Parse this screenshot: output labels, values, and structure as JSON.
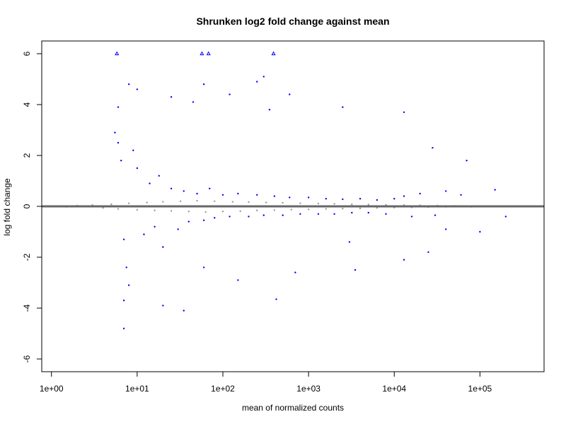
{
  "chart_data": {
    "type": "scatter",
    "title": "Shrunken log2 fold change against mean",
    "xlabel": "mean of normalized counts",
    "ylabel": "log fold change",
    "x_scale": "log10",
    "xlim": [
      0.77,
      560000
    ],
    "ylim": [
      -6.5,
      6.5
    ],
    "x_ticks": [
      1,
      10,
      100,
      1000,
      10000,
      100000
    ],
    "x_tick_labels": [
      "1e+00",
      "1e+01",
      "1e+02",
      "1e+03",
      "1e+04",
      "1e+05"
    ],
    "y_ticks": [
      -6,
      -4,
      -2,
      0,
      2,
      4,
      6
    ],
    "y_tick_labels": [
      "-6",
      "-4",
      "-2",
      "0",
      "2",
      "4",
      "6"
    ],
    "grid": false,
    "reference_line": {
      "y": 0,
      "color": "#666666"
    },
    "series": [
      {
        "color": "#999999",
        "marker": "dot",
        "points": [
          [
            1.2,
            0.01
          ],
          [
            1.5,
            -0.02
          ],
          [
            2,
            0.03
          ],
          [
            2.5,
            -0.01
          ],
          [
            3,
            0.05
          ],
          [
            4,
            -0.06
          ],
          [
            5,
            0.08
          ],
          [
            6,
            -0.1
          ],
          [
            8,
            0.12
          ],
          [
            10,
            -0.14
          ],
          [
            13,
            0.15
          ],
          [
            16,
            -0.16
          ],
          [
            20,
            0.18
          ],
          [
            25,
            -0.18
          ],
          [
            32,
            0.2
          ],
          [
            40,
            -0.2
          ],
          [
            50,
            0.22
          ],
          [
            63,
            -0.22
          ],
          [
            80,
            0.2
          ],
          [
            100,
            -0.2
          ],
          [
            130,
            0.18
          ],
          [
            160,
            -0.19
          ],
          [
            200,
            0.17
          ],
          [
            250,
            -0.16
          ],
          [
            320,
            0.15
          ],
          [
            400,
            -0.15
          ],
          [
            500,
            0.14
          ],
          [
            630,
            -0.13
          ],
          [
            800,
            0.12
          ],
          [
            1000,
            -0.12
          ],
          [
            1300,
            0.11
          ],
          [
            1600,
            -0.1
          ],
          [
            2000,
            0.1
          ],
          [
            2500,
            -0.09
          ],
          [
            3200,
            0.08
          ],
          [
            4000,
            -0.08
          ],
          [
            5000,
            0.07
          ],
          [
            6300,
            -0.06
          ],
          [
            8000,
            0.06
          ],
          [
            10000,
            -0.05
          ],
          [
            13000,
            0.05
          ],
          [
            16000,
            -0.04
          ],
          [
            20000,
            0.04
          ],
          [
            25000,
            -0.03
          ],
          [
            32000,
            0.03
          ],
          [
            40000,
            -0.02
          ],
          [
            50000,
            0.02
          ],
          [
            80000,
            -0.02
          ],
          [
            130000,
            0.01
          ],
          [
            200000,
            -0.01
          ]
        ]
      },
      {
        "color": "#0000ff",
        "marker": "dot",
        "points": [
          [
            5.5,
            2.9
          ],
          [
            6,
            2.5
          ],
          [
            6.5,
            1.8
          ],
          [
            7,
            -1.3
          ],
          [
            7.5,
            -2.4
          ],
          [
            8,
            -3.1
          ],
          [
            9,
            2.2
          ],
          [
            10,
            1.5
          ],
          [
            12,
            -1.1
          ],
          [
            14,
            0.9
          ],
          [
            16,
            -0.8
          ],
          [
            18,
            1.2
          ],
          [
            20,
            -1.6
          ],
          [
            25,
            0.7
          ],
          [
            30,
            -0.9
          ],
          [
            35,
            0.6
          ],
          [
            40,
            -0.6
          ],
          [
            50,
            0.5
          ],
          [
            60,
            -0.55
          ],
          [
            70,
            0.7
          ],
          [
            80,
            -0.45
          ],
          [
            100,
            0.45
          ],
          [
            120,
            -0.4
          ],
          [
            150,
            0.5
          ],
          [
            200,
            -0.4
          ],
          [
            250,
            0.45
          ],
          [
            300,
            -0.35
          ],
          [
            400,
            0.4
          ],
          [
            500,
            -0.35
          ],
          [
            600,
            0.35
          ],
          [
            800,
            -0.3
          ],
          [
            1000,
            0.35
          ],
          [
            1300,
            -0.3
          ],
          [
            1600,
            0.3
          ],
          [
            2000,
            -0.3
          ],
          [
            2500,
            0.28
          ],
          [
            3200,
            -0.25
          ],
          [
            4000,
            0.3
          ],
          [
            5000,
            -0.25
          ],
          [
            6300,
            0.25
          ],
          [
            8000,
            -0.3
          ],
          [
            10000,
            0.3
          ],
          [
            13000,
            0.4
          ],
          [
            16000,
            -0.4
          ],
          [
            20000,
            0.5
          ],
          [
            30000,
            -0.35
          ],
          [
            40000,
            0.6
          ],
          [
            60000,
            0.45
          ],
          [
            100000,
            -1.0
          ],
          [
            150000,
            0.65
          ],
          [
            200000,
            -0.4
          ],
          [
            6,
            3.9
          ],
          [
            7,
            -3.7
          ],
          [
            8,
            4.8
          ],
          [
            10,
            4.6
          ],
          [
            25,
            4.3
          ],
          [
            45,
            4.1
          ],
          [
            60,
            4.8
          ],
          [
            120,
            4.4
          ],
          [
            250,
            4.9
          ],
          [
            300,
            5.1
          ],
          [
            350,
            3.8
          ],
          [
            600,
            4.4
          ],
          [
            2500,
            3.9
          ],
          [
            13000,
            3.7
          ],
          [
            28000,
            2.3
          ],
          [
            70000,
            1.8
          ],
          [
            7,
            -4.8
          ],
          [
            20,
            -3.9
          ],
          [
            35,
            -4.1
          ],
          [
            420,
            -3.65
          ],
          [
            3500,
            -2.5
          ],
          [
            25000,
            -1.8
          ],
          [
            40000,
            -0.9
          ],
          [
            13000,
            -2.1
          ],
          [
            3000,
            -1.4
          ],
          [
            700,
            -2.6
          ],
          [
            150,
            -2.9
          ],
          [
            60,
            -2.4
          ],
          [
            1.5,
            0.0
          ]
        ]
      },
      {
        "color": "#0000ff",
        "marker": "triangle",
        "points": [
          [
            5.8,
            6
          ],
          [
            57,
            6
          ],
          [
            68,
            6
          ],
          [
            390,
            6
          ]
        ]
      }
    ]
  }
}
